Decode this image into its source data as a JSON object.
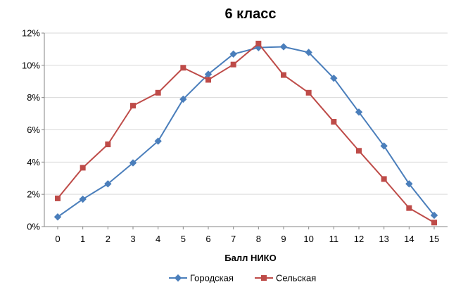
{
  "chart_data": {
    "type": "line",
    "title": "6 класс",
    "xlabel": "Балл НИКО",
    "ylabel": "",
    "x": [
      0,
      1,
      2,
      3,
      4,
      5,
      6,
      7,
      8,
      9,
      10,
      11,
      12,
      13,
      14,
      15
    ],
    "ylim": [
      0,
      0.12
    ],
    "yticks": [
      0,
      0.02,
      0.04,
      0.06,
      0.08,
      0.1,
      0.12
    ],
    "ytick_labels": [
      "0%",
      "2%",
      "4%",
      "6%",
      "8%",
      "10%",
      "12%"
    ],
    "grid": true,
    "legend_position": "bottom",
    "series": [
      {
        "name": "Городская",
        "color": "#4A7EBB",
        "marker": "diamond",
        "values": [
          0.006,
          0.017,
          0.0265,
          0.0395,
          0.053,
          0.079,
          0.0945,
          0.107,
          0.111,
          0.1115,
          0.108,
          0.092,
          0.071,
          0.05,
          0.0265,
          0.007
        ]
      },
      {
        "name": "Сельская",
        "color": "#BE4B48",
        "marker": "square",
        "values": [
          0.0175,
          0.0365,
          0.051,
          0.075,
          0.083,
          0.0985,
          0.091,
          0.1005,
          0.1135,
          0.094,
          0.083,
          0.065,
          0.047,
          0.0295,
          0.0115,
          0.0025
        ]
      }
    ]
  }
}
